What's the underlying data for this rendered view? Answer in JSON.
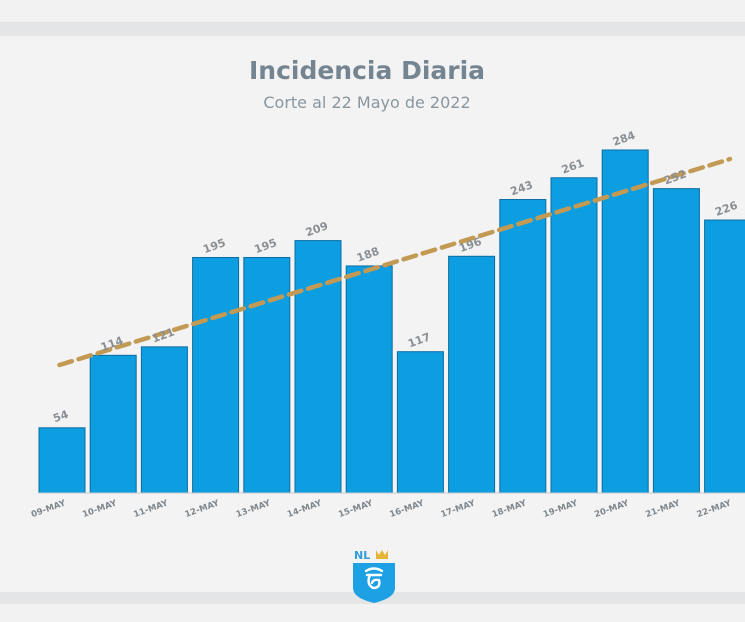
{
  "chart_data": {
    "type": "bar",
    "title": "Incidencia Diaria",
    "subtitle": "Corte al 22 Mayo de 2022",
    "categories": [
      "09-MAY",
      "10-MAY",
      "11-MAY",
      "12-MAY",
      "13-MAY",
      "14-MAY",
      "15-MAY",
      "16-MAY",
      "17-MAY",
      "18-MAY",
      "19-MAY",
      "20-MAY",
      "21-MAY",
      "22-MAY"
    ],
    "values": [
      54,
      114,
      121,
      195,
      195,
      209,
      188,
      117,
      196,
      243,
      261,
      284,
      252,
      226
    ],
    "value_labels": [
      "54",
      "114",
      "121",
      "195",
      "195",
      "209",
      "188",
      "117",
      "196",
      "243",
      "261",
      "284",
      "252",
      "226"
    ],
    "trendline": {
      "style": "dashed",
      "color": "#c29a54"
    },
    "ylim": [
      0,
      284
    ],
    "grid": false,
    "legend": "none",
    "bar_color": "#0d9de1"
  },
  "logo": {
    "text": "NL"
  }
}
